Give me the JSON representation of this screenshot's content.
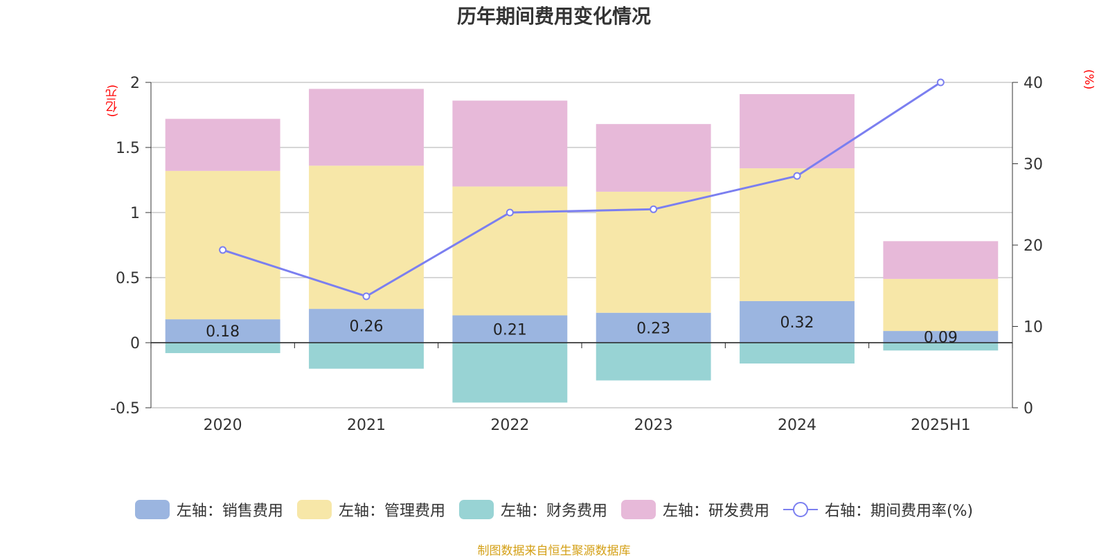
{
  "title": "历年期间费用变化情况",
  "units": {
    "left": "(亿元)",
    "right": "(%)"
  },
  "source": "制图数据来自恒生聚源数据库",
  "chart_data": {
    "type": "bar",
    "stacked": true,
    "categories": [
      "2020",
      "2021",
      "2022",
      "2023",
      "2024",
      "2025H1"
    ],
    "y_left": {
      "min": -0.5,
      "max": 2,
      "ticks": [
        "-0.5",
        "0",
        "0.5",
        "1",
        "1.5",
        "2"
      ]
    },
    "y_right": {
      "min": 0,
      "max": 40,
      "ticks": [
        "0",
        "10",
        "20",
        "30",
        "40"
      ]
    },
    "grid": true,
    "legend_position": "bottom",
    "series": [
      {
        "name": "左轴：销售费用",
        "axis": "left",
        "color": "#9bb5e0",
        "values": [
          0.18,
          0.26,
          0.21,
          0.23,
          0.32,
          0.09
        ],
        "labels": [
          "0.18",
          "0.26",
          "0.21",
          "0.23",
          "0.32",
          "0.09"
        ]
      },
      {
        "name": "左轴：管理费用",
        "axis": "left",
        "color": "#f7e7a8",
        "values": [
          1.14,
          1.1,
          0.99,
          0.93,
          1.02,
          0.4
        ]
      },
      {
        "name": "左轴：财务费用",
        "axis": "left",
        "color": "#98d3d4",
        "values": [
          -0.08,
          -0.2,
          -0.46,
          -0.29,
          -0.16,
          -0.06
        ]
      },
      {
        "name": "左轴：研发费用",
        "axis": "left",
        "color": "#e7b9d9",
        "values": [
          0.4,
          0.59,
          0.66,
          0.52,
          0.57,
          0.29
        ]
      },
      {
        "name": "右轴：期间费用率(%)",
        "axis": "right",
        "type": "line",
        "color": "#7b7ff0",
        "values": [
          19.4,
          13.7,
          24.0,
          24.4,
          28.5,
          40.0
        ]
      }
    ]
  }
}
